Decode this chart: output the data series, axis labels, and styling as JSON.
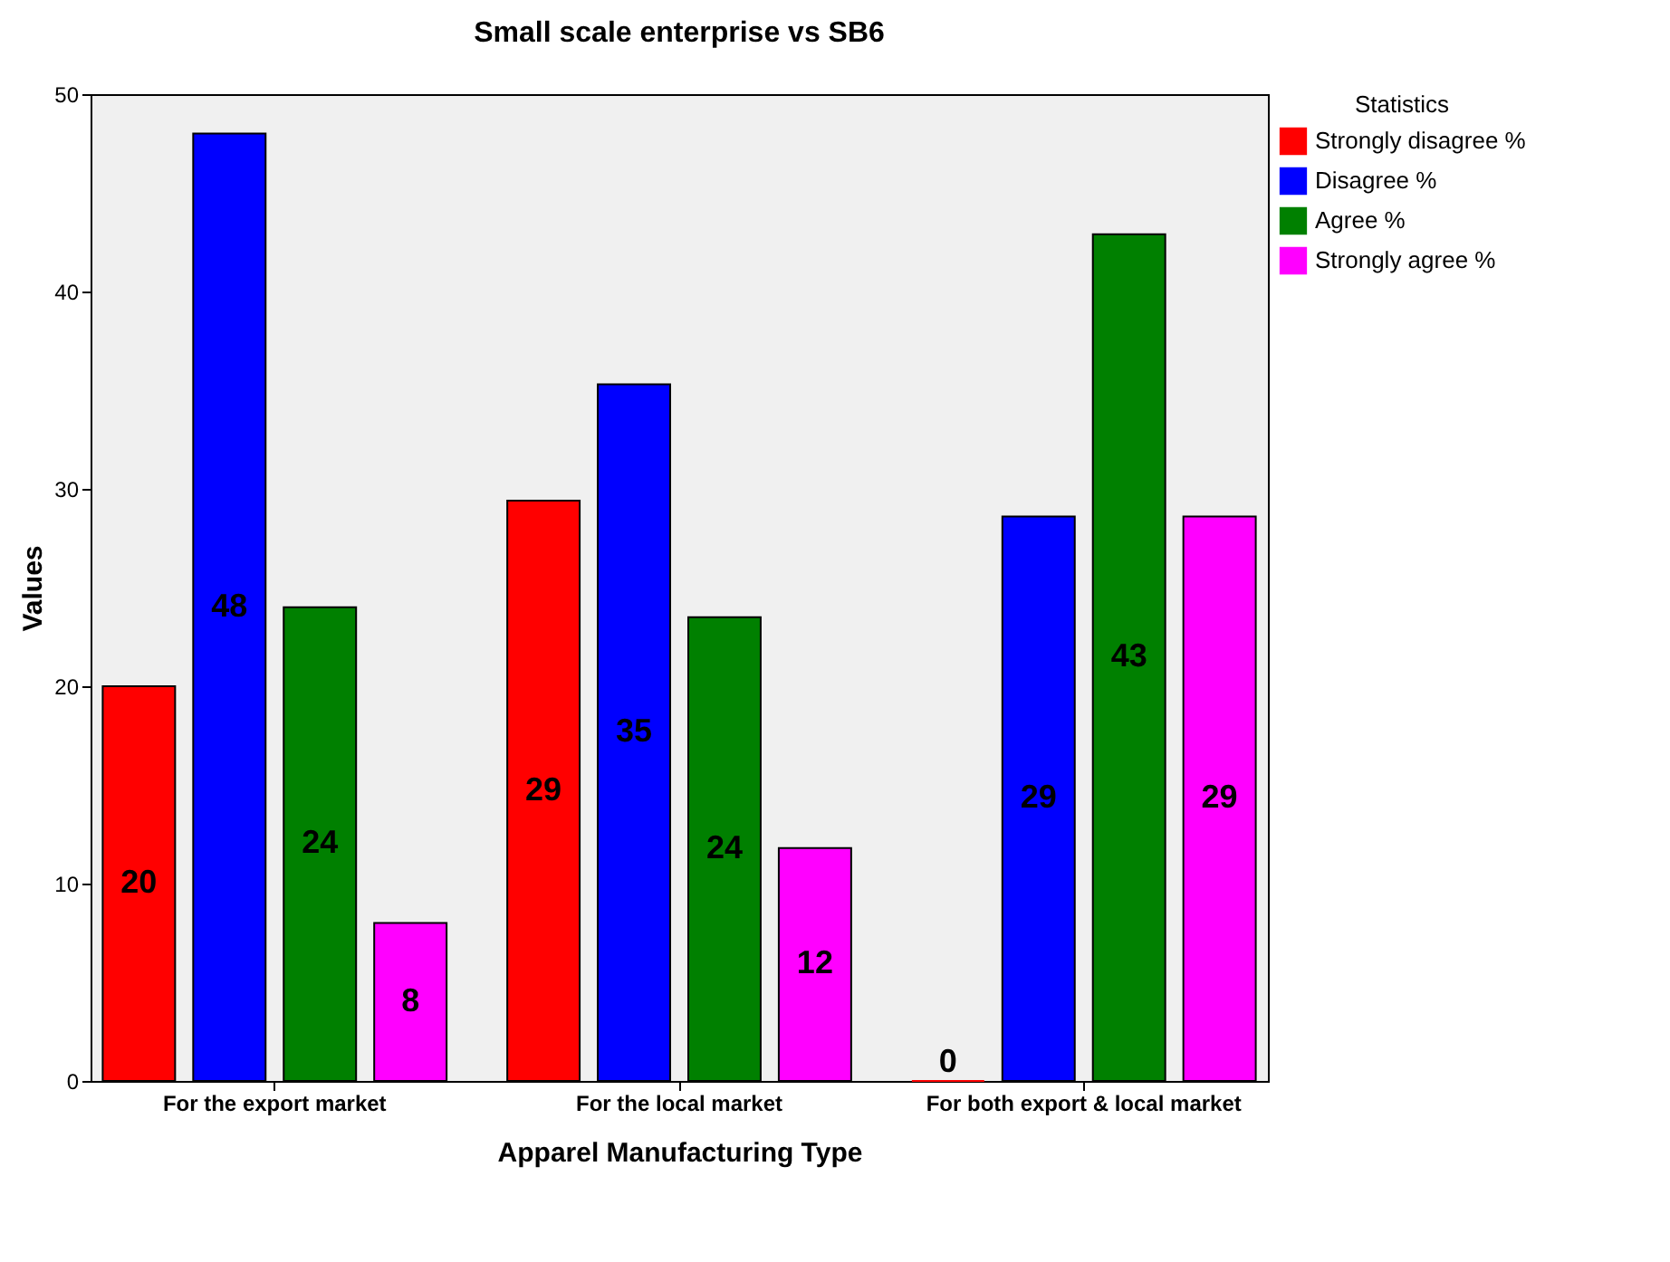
{
  "chart_data": {
    "type": "bar",
    "title": "Small scale enterprise vs SB6",
    "xlabel": "Apparel Manufacturing Type",
    "ylabel": "Values",
    "legend_title": "Statistics",
    "legend": "right",
    "categories": [
      "For the export market",
      "For the local market",
      "For both export & local market"
    ],
    "ylim": [
      0,
      50
    ],
    "yticks": [
      0,
      10,
      20,
      30,
      40,
      50
    ],
    "grid": false,
    "series": [
      {
        "name": "Strongly disagree %",
        "color": "#ff0000",
        "values": [
          20,
          29.4,
          0
        ],
        "value_labels": [
          "20",
          "29",
          "0"
        ]
      },
      {
        "name": "Disagree %",
        "color": "#0000ff",
        "values": [
          48,
          35.3,
          28.6
        ],
        "value_labels": [
          "48",
          "35",
          "29"
        ]
      },
      {
        "name": "Agree %",
        "color": "#008000",
        "values": [
          24,
          23.5,
          42.9
        ],
        "value_labels": [
          "24",
          "24",
          "43"
        ]
      },
      {
        "name": "Strongly agree %",
        "color": "#ff00ff",
        "values": [
          8,
          11.8,
          28.6
        ],
        "value_labels": [
          "8",
          "12",
          "29"
        ]
      }
    ]
  }
}
